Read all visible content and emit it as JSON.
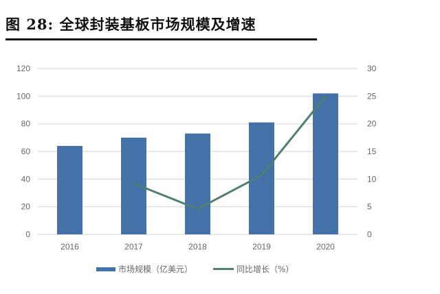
{
  "figure": {
    "title": "图  28:  全球封装基板市场规模及增速"
  },
  "colors": {
    "bar": "#4472A8",
    "line": "#4F7F72",
    "grid": "#D9D9D9",
    "tick_text": "#666666"
  },
  "legend": {
    "bar_label": "市场规模（亿美元）",
    "line_label": "同比增长（%）"
  },
  "chart_data": {
    "type": "bar+line",
    "title": "全球封装基板市场规模及增速",
    "categories": [
      "2016",
      "2017",
      "2018",
      "2019",
      "2020"
    ],
    "series": [
      {
        "name": "市场规模（亿美元）",
        "type": "bar",
        "axis": "left",
        "values": [
          64,
          70,
          73,
          81,
          102
        ]
      },
      {
        "name": "同比增长（%）",
        "type": "line",
        "axis": "right",
        "values": [
          null,
          9.2,
          4.6,
          10.7,
          25.0
        ]
      }
    ],
    "left_axis": {
      "min": 0,
      "max": 120,
      "ticks": [
        0,
        20,
        40,
        60,
        80,
        100,
        120
      ]
    },
    "right_axis": {
      "min": 0,
      "max": 30,
      "ticks": [
        0,
        5,
        10,
        15,
        20,
        25,
        30
      ]
    },
    "xlabel": "",
    "ylabel": "",
    "grid": true,
    "legend_position": "bottom"
  }
}
